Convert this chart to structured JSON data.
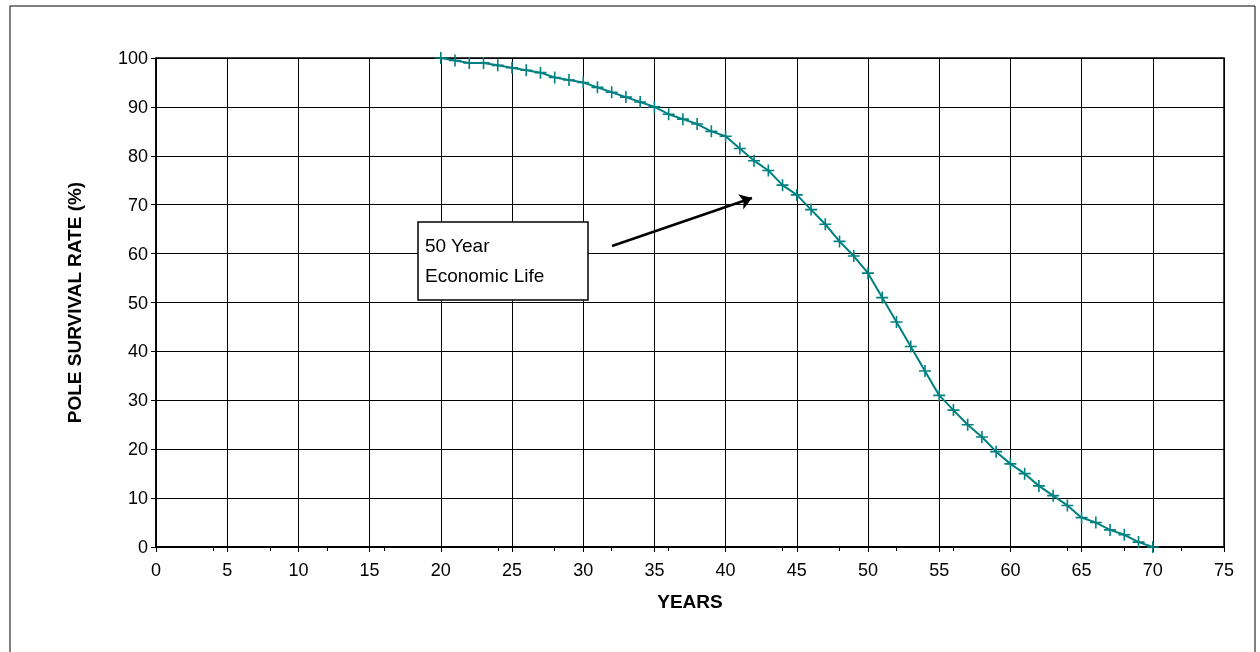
{
  "chart_data": {
    "type": "line",
    "xlabel": "YEARS",
    "ylabel": "POLE SURVIVAL RATE (%)",
    "x": [
      20,
      21,
      22,
      23,
      24,
      25,
      26,
      27,
      28,
      29,
      30,
      31,
      32,
      33,
      34,
      35,
      36,
      37,
      38,
      39,
      40,
      41,
      42,
      43,
      44,
      45,
      46,
      47,
      48,
      49,
      50,
      51,
      52,
      53,
      54,
      55,
      56,
      57,
      58,
      59,
      60,
      61,
      62,
      63,
      64,
      65,
      66,
      67,
      68,
      69,
      70
    ],
    "series": [
      {
        "color": "#008080",
        "values": [
          100,
          99.5,
          99,
          99,
          98.5,
          98,
          97.5,
          97,
          96,
          95.5,
          95,
          94,
          93,
          92,
          91,
          90,
          88.5,
          87.5,
          86.5,
          85,
          84,
          81.5,
          79,
          77,
          74,
          72,
          69,
          66,
          62.5,
          59.5,
          56,
          51,
          46,
          41,
          36,
          31,
          28,
          25,
          22.5,
          19.5,
          17,
          15,
          12.5,
          10.5,
          8.5,
          6,
          5,
          3.5,
          2.5,
          1,
          0
        ]
      }
    ],
    "xlim": [
      0,
      75
    ],
    "xticks": [
      0,
      5,
      10,
      15,
      20,
      25,
      30,
      35,
      40,
      45,
      50,
      55,
      60,
      65,
      70,
      75
    ],
    "ylim": [
      0,
      100
    ],
    "yticks": [
      0,
      10,
      20,
      30,
      40,
      50,
      60,
      70,
      80,
      90,
      100
    ],
    "grid": true,
    "marker": "cross",
    "line_style": "solid",
    "annotations": [
      "50 Year\nEconomic Life"
    ]
  }
}
